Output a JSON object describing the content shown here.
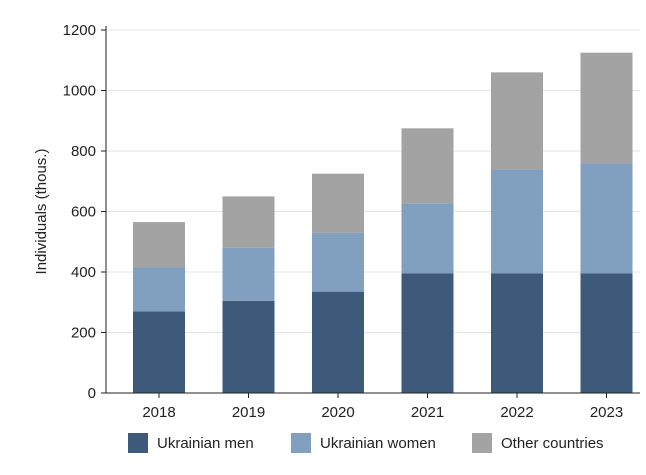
{
  "chart_data": {
    "type": "bar",
    "stacked": true,
    "categories": [
      "2018",
      "2019",
      "2020",
      "2021",
      "2022",
      "2023"
    ],
    "series": [
      {
        "name": "Ukrainian men",
        "color": "#3d5a7a",
        "values": [
          270,
          305,
          335,
          395,
          395,
          395
        ]
      },
      {
        "name": "Ukrainian women",
        "color": "#819fbf",
        "values": [
          145,
          175,
          195,
          230,
          345,
          365
        ]
      },
      {
        "name": "Other countries",
        "color": "#a3a3a3",
        "values": [
          150,
          170,
          195,
          250,
          320,
          365
        ]
      }
    ],
    "title": "",
    "xlabel": "",
    "ylabel": "Individuals (thous.)",
    "ylim": [
      0,
      1200
    ],
    "yticks": [
      0,
      200,
      400,
      600,
      800,
      1000,
      1200
    ],
    "grid": true,
    "legend_position": "bottom"
  }
}
